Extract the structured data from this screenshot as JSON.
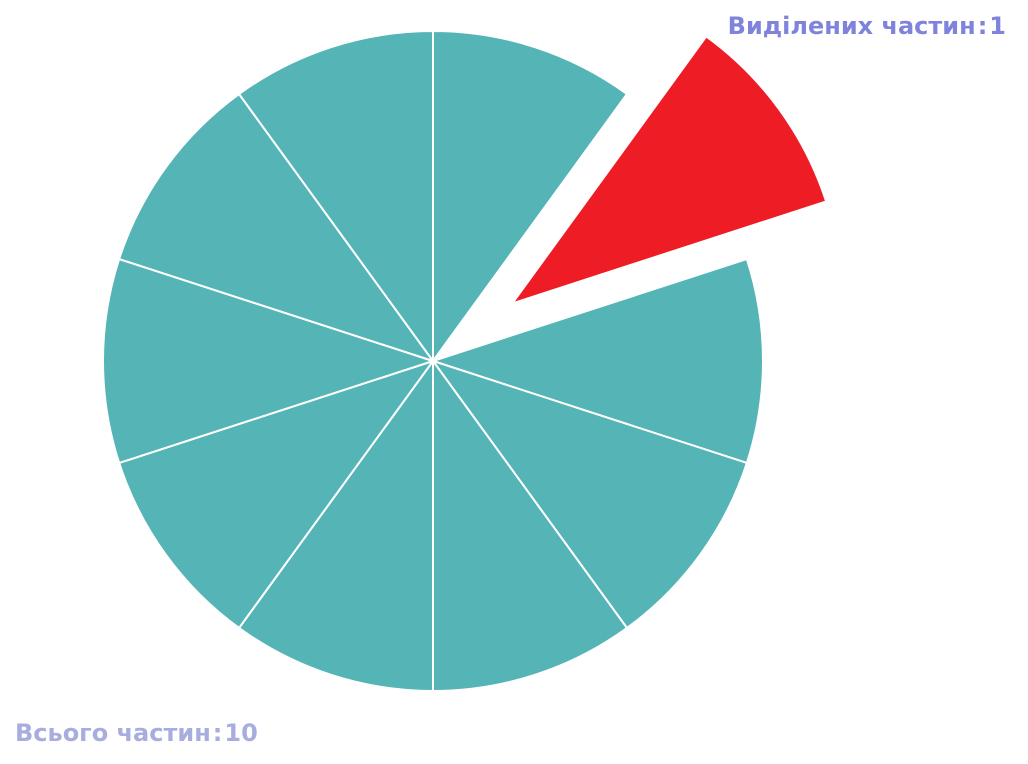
{
  "fraction": {
    "total_parts": 10,
    "selected_parts": 1,
    "selected_indices": [
      1
    ],
    "colors": {
      "normal": "#54b4b6",
      "selected": "#ee1c24",
      "divider": "#ffffff"
    }
  },
  "labels": {
    "selected_text": "Виділених частин",
    "selected_sep": ":",
    "selected_value": "1",
    "total_text": "Всього частин",
    "total_sep": ":",
    "total_value": "10"
  }
}
